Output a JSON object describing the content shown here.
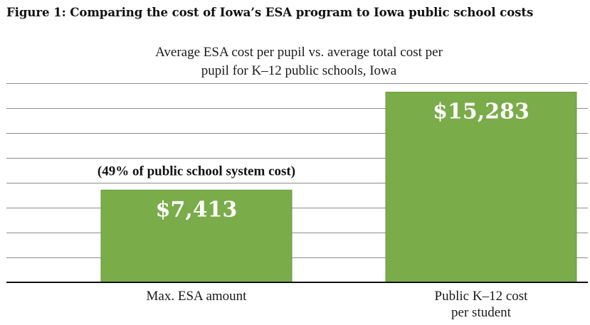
{
  "figure_title": "Figure 1: Comparing the cost of Iowa’s ESA program to Iowa public school costs",
  "colors": {
    "bar": "#7aac4a",
    "bar_edge": "#6a9a3e",
    "grid": "#8c8c8c",
    "axis": "#111111"
  },
  "chart_data": {
    "type": "bar",
    "title_lines": [
      "Average ESA cost per pupil vs. average total cost per",
      "pupil for K–12 public schools, Iowa"
    ],
    "categories": [
      [
        "Max. ESA amount"
      ],
      [
        "Public K–12 cost",
        "per student"
      ]
    ],
    "values": [
      7413,
      15283
    ],
    "data_labels": [
      "$7,413",
      "$15,283"
    ],
    "annotations": [
      {
        "category_index": 0,
        "text": "(49% of public school system cost)"
      }
    ],
    "ylim": [
      0,
      16000
    ],
    "ygrid_step": 2000,
    "grid": true,
    "xlabel": "",
    "ylabel": ""
  }
}
